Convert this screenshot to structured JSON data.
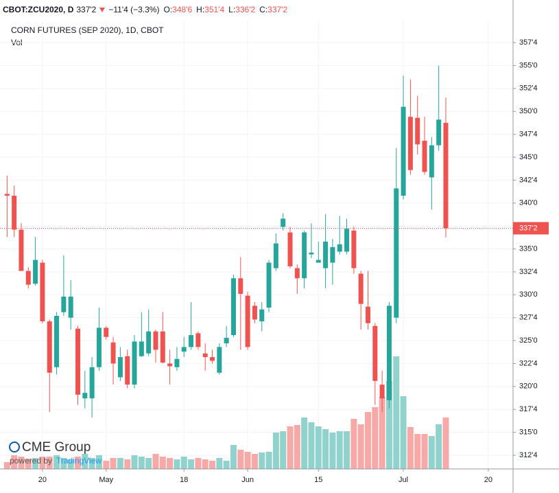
{
  "header": {
    "symbol": "CBOT:ZCU2020, D",
    "last": "337'2",
    "change": "−11'4 (−3.3%)",
    "ohlc": [
      {
        "label": "O:",
        "value": "348'6"
      },
      {
        "label": "H:",
        "value": "351'4"
      },
      {
        "label": "L:",
        "value": "336'2"
      },
      {
        "label": "C:",
        "value": "337'2"
      }
    ]
  },
  "branding": {
    "logo": "CME Group",
    "powered": "powered by",
    "vendor": "TradingView"
  },
  "chart_data": {
    "type": "candlestick",
    "title": "CORN FUTURES (SEP 2020), 1D, CBOT",
    "subtitle": "Vol",
    "up_color": "#26a69a",
    "down_color": "#ef5350",
    "volume_up_color": "#92d2cc",
    "volume_down_color": "#f7a9a7",
    "open": [
      341.0,
      340.8,
      337.1,
      332.6,
      331.2,
      333.5,
      327.1,
      322.1,
      328.1,
      327.5,
      326.3,
      318.7,
      318.7,
      322.1,
      326.4,
      324.8,
      321.0,
      323.3,
      320.2,
      323.3,
      323.6,
      326.0,
      326.0,
      322.5,
      322.1,
      323.8,
      324.3,
      325.8,
      323.6,
      323.2,
      321.5,
      324.7,
      325.6,
      331.8,
      329.9,
      328.8,
      327.1,
      328.6,
      332.9,
      337.4,
      336.8,
      332.9,
      331.8,
      334.4,
      333.5,
      332.9,
      333.5,
      334.7,
      334.7,
      337.0,
      332.3,
      328.7,
      326.6,
      320.2,
      318.5,
      327.5,
      340.8,
      349.4,
      349.3,
      346.8,
      342.8,
      346.3,
      348.75
    ],
    "high": [
      343.0,
      341.9,
      337.8,
      333.0,
      336.3,
      333.8,
      327.3,
      328.1,
      334.3,
      331.6,
      326.6,
      321.7,
      323.2,
      328.6,
      326.6,
      325.4,
      324.3,
      324.0,
      325.6,
      328.1,
      328.4,
      326.2,
      328.1,
      324.0,
      324.3,
      325.4,
      329.2,
      326.0,
      324.7,
      324.0,
      324.7,
      326.6,
      332.2,
      334.1,
      330.3,
      329.2,
      329.2,
      333.8,
      336.7,
      338.9,
      337.4,
      333.3,
      337.0,
      337.8,
      335.8,
      338.8,
      336.1,
      338.6,
      338.3,
      337.4,
      332.6,
      332.6,
      326.9,
      321.7,
      329.2,
      346.0,
      353.9,
      353.5,
      351.7,
      349.4,
      347.2,
      355.0,
      351.5
    ],
    "low": [
      336.3,
      336.3,
      332.6,
      330.7,
      331.0,
      326.9,
      317.2,
      321.3,
      327.7,
      326.2,
      318.0,
      317.6,
      316.6,
      321.7,
      325.1,
      320.2,
      320.6,
      319.8,
      319.8,
      323.2,
      323.3,
      322.6,
      322.5,
      320.2,
      321.7,
      323.2,
      324.0,
      324.0,
      321.7,
      322.5,
      321.3,
      324.3,
      325.4,
      324.0,
      324.0,
      326.9,
      326.0,
      328.1,
      332.6,
      337.0,
      332.9,
      330.1,
      330.7,
      334.0,
      333.5,
      330.7,
      331.1,
      334.4,
      334.4,
      332.3,
      326.2,
      326.2,
      318.0,
      317.2,
      317.6,
      326.9,
      340.4,
      343.1,
      345.3,
      343.1,
      339.3,
      345.7,
      336.25
    ],
    "close": [
      340.8,
      337.1,
      332.6,
      331.1,
      333.8,
      327.1,
      321.5,
      327.7,
      329.8,
      329.8,
      319.1,
      319.3,
      322.1,
      326.4,
      325.4,
      322.5,
      323.2,
      320.2,
      324.9,
      324.9,
      326.0,
      324.0,
      322.6,
      322.2,
      323.0,
      324.3,
      325.6,
      324.3,
      323.2,
      322.8,
      324.3,
      325.3,
      331.8,
      330.1,
      324.3,
      327.3,
      328.4,
      333.5,
      335.6,
      338.3,
      333.1,
      331.8,
      336.8,
      334.6,
      333.8,
      335.8,
      335.2,
      335.5,
      337.2,
      332.9,
      329.0,
      326.9,
      320.6,
      318.7,
      328.8,
      341.6,
      350.5,
      343.6,
      346.4,
      343.4,
      346.3,
      349.1,
      337.25
    ],
    "volume": [
      10,
      20,
      18,
      15,
      16,
      18,
      18,
      20,
      16,
      14,
      18,
      22,
      16,
      20,
      12,
      16,
      16,
      14,
      20,
      18,
      16,
      22,
      18,
      16,
      14,
      18,
      14,
      16,
      14,
      12,
      16,
      12,
      35,
      28,
      25,
      22,
      24,
      25,
      53,
      55,
      62,
      64,
      75,
      68,
      62,
      58,
      53,
      55,
      55,
      73,
      65,
      83,
      90,
      105,
      128,
      164,
      106,
      61,
      51,
      51,
      48,
      65,
      75
    ],
    "vlim": [
      0,
      653
    ],
    "xlim": [
      -1,
      71.5
    ],
    "xticks": [
      {
        "value": 5,
        "label": "20"
      },
      {
        "value": 14,
        "label": "May"
      },
      {
        "value": 25,
        "label": "18"
      },
      {
        "value": 34,
        "label": "Jun"
      },
      {
        "value": 44,
        "label": "15"
      },
      {
        "value": 56,
        "label": "Jul"
      },
      {
        "value": 68,
        "label": "20"
      }
    ],
    "ylim": [
      311.0,
      359.9
    ],
    "yticks": [
      {
        "value": 312.5,
        "label": "312'4"
      },
      {
        "value": 315,
        "label": "315'0"
      },
      {
        "value": 317.5,
        "label": "317'4"
      },
      {
        "value": 320,
        "label": "320'0"
      },
      {
        "value": 322.5,
        "label": "322'4"
      },
      {
        "value": 325,
        "label": "325'0"
      },
      {
        "value": 327.5,
        "label": "327'4"
      },
      {
        "value": 330,
        "label": "330'0"
      },
      {
        "value": 332.5,
        "label": "332'4"
      },
      {
        "value": 335,
        "label": "335'0"
      },
      {
        "value": 337.5,
        "label": "337'4"
      },
      {
        "value": 340,
        "label": "340'0"
      },
      {
        "value": 342.5,
        "label": "342'4"
      },
      {
        "value": 345,
        "label": "345'0"
      },
      {
        "value": 347.5,
        "label": "347'4"
      },
      {
        "value": 350,
        "label": "350'0"
      },
      {
        "value": 352.5,
        "label": "352'4"
      },
      {
        "value": 355,
        "label": "355'0"
      },
      {
        "value": 357.5,
        "label": "357'4"
      }
    ],
    "last_price": {
      "value": 337.25,
      "label": "337'2"
    },
    "grid": true
  }
}
